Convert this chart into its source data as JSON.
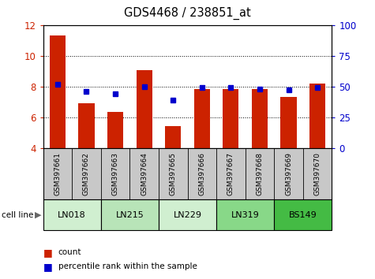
{
  "title": "GDS4468 / 238851_at",
  "samples": [
    "GSM397661",
    "GSM397662",
    "GSM397663",
    "GSM397664",
    "GSM397665",
    "GSM397666",
    "GSM397667",
    "GSM397668",
    "GSM397669",
    "GSM397670"
  ],
  "count_values": [
    11.35,
    6.9,
    6.35,
    9.05,
    5.4,
    7.85,
    7.85,
    7.85,
    7.3,
    8.2
  ],
  "percentile_values": [
    52,
    46,
    44,
    50,
    39,
    49,
    49,
    48,
    47,
    49
  ],
  "ylim_left": [
    4,
    12
  ],
  "ylim_right": [
    0,
    100
  ],
  "yticks_left": [
    4,
    6,
    8,
    10,
    12
  ],
  "yticks_right": [
    0,
    25,
    50,
    75,
    100
  ],
  "cell_lines": [
    {
      "name": "LN018",
      "indices": [
        0,
        1
      ],
      "color": "#d0efd0"
    },
    {
      "name": "LN215",
      "indices": [
        2,
        3
      ],
      "color": "#b8e4b8"
    },
    {
      "name": "LN229",
      "indices": [
        4,
        5
      ],
      "color": "#d0efd0"
    },
    {
      "name": "LN319",
      "indices": [
        6,
        7
      ],
      "color": "#88d888"
    },
    {
      "name": "BS149",
      "indices": [
        8,
        9
      ],
      "color": "#44bb44"
    }
  ],
  "bar_color": "#cc2200",
  "dot_color": "#0000cc",
  "tick_label_color_left": "#cc2200",
  "tick_label_color_right": "#0000cc",
  "bar_width": 0.55,
  "bg_color": "#ffffff",
  "sample_box_color": "#c8c8c8"
}
